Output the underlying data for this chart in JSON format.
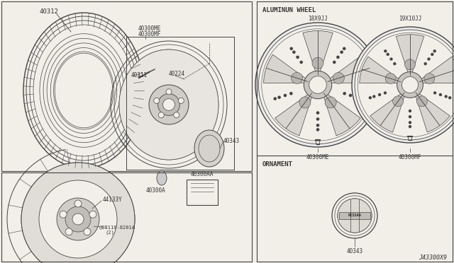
{
  "bg_color": "#f2efe9",
  "line_color": "#444444",
  "text_color": "#333333",
  "diagram_code": "J43300X9",
  "aluminum_wheel_label": "ALUMINUN WHEEL",
  "ornament_label": "ORNAMENT",
  "wheel1_label": "18X9JJ",
  "wheel2_label": "19X10JJ",
  "wheel1_part": "40300ME",
  "wheel2_part": "40300MF",
  "ornament_part": "40343",
  "tire_part": "40312",
  "wheel_part_labels": [
    "40300ME",
    "40300MF"
  ],
  "valve_part": "40311",
  "cap_part": "40224",
  "center_cap_part": "40343",
  "lug_part": "40300A",
  "sticker_part": "40300AA",
  "hub_asm_part": "44133Y",
  "bolt_part": "@08110-8201A\n(2)"
}
